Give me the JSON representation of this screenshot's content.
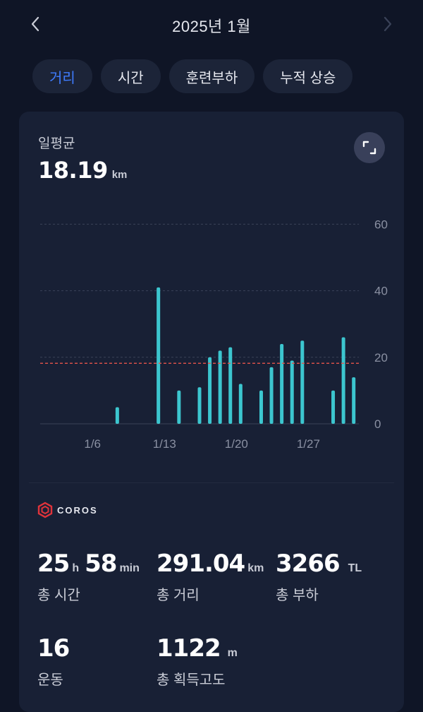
{
  "header": {
    "month_title": "2025년 1월"
  },
  "tabs": [
    {
      "label": "거리",
      "active": true
    },
    {
      "label": "시간",
      "active": false
    },
    {
      "label": "훈련부하",
      "active": false
    },
    {
      "label": "누적 상승",
      "active": false
    }
  ],
  "summary": {
    "avg_label": "일평균",
    "avg_value": "18.19",
    "avg_unit": "km"
  },
  "chart_data": {
    "type": "bar",
    "x_ticks": [
      "1/6",
      "1/13",
      "1/20",
      "1/27"
    ],
    "x": [
      "1/1",
      "1/2",
      "1/3",
      "1/4",
      "1/5",
      "1/6",
      "1/7",
      "1/8",
      "1/9",
      "1/10",
      "1/11",
      "1/12",
      "1/13",
      "1/14",
      "1/15",
      "1/16",
      "1/17",
      "1/18",
      "1/19",
      "1/20",
      "1/21",
      "1/22",
      "1/23",
      "1/24",
      "1/25",
      "1/26",
      "1/27",
      "1/28",
      "1/29",
      "1/30",
      "1/31"
    ],
    "values": [
      0,
      0,
      0,
      0,
      0,
      0,
      0,
      5,
      0,
      0,
      0,
      41,
      0,
      10,
      0,
      11,
      20,
      22,
      23,
      12,
      0,
      10,
      17,
      24,
      19,
      25,
      0,
      0,
      10,
      26,
      14
    ],
    "y_ticks": [
      0,
      20,
      40,
      60
    ],
    "ylim": [
      0,
      62
    ],
    "average": 18.19,
    "colors": {
      "bar": "#3cc6cf",
      "average_line": "#e5534b",
      "grid": "#3a4258"
    }
  },
  "brand": {
    "name": "COROS"
  },
  "stats": [
    {
      "num1": "25",
      "unit1": "h",
      "num2": "58",
      "unit2": "min",
      "label": "총 시간"
    },
    {
      "num1": "291.04",
      "unit1": "km",
      "label": "총 거리"
    },
    {
      "num1": "3266",
      "unit1": "TL",
      "label": "총 부하"
    },
    {
      "num1": "16",
      "unit1": "",
      "label": "운동"
    },
    {
      "num1": "1122",
      "unit1": "m",
      "label": "총 획득고도"
    }
  ],
  "colors": {
    "accent": "#3f7cff",
    "background": "#0f1526",
    "card": "#182035"
  }
}
